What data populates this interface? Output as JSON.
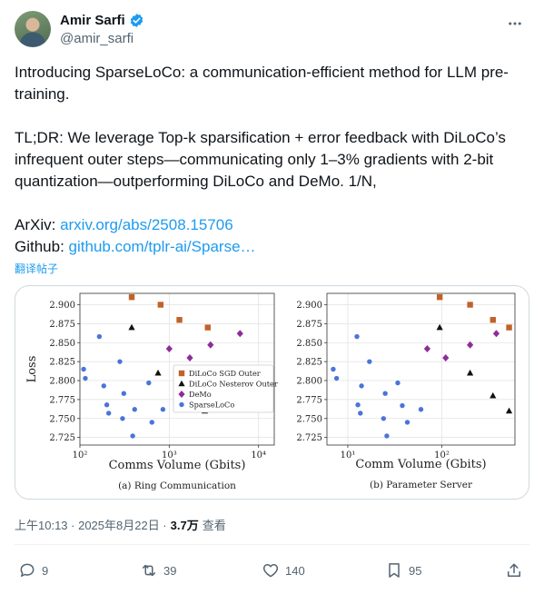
{
  "author": {
    "name": "Amir Sarfi",
    "handle": "@amir_sarfi"
  },
  "tweet": {
    "line1": "Introducing SparseLoCo: a communication-efficient method for LLM pre-training.",
    "line2": "TL;DR: We leverage Top-k sparsification + error feedback with DiLoCo’s infrequent outer steps—communicating only 1–3% gradients with 2-bit quantization—outperforming DiLoCo and DeMo. 1/N,",
    "arxiv_label": "ArXiv: ",
    "arxiv_link": "arxiv.org/abs/2508.15706",
    "github_label": "Github: ",
    "github_link": "github.com/tplr-ai/Sparse…"
  },
  "translate_label": "翻译帖子",
  "meta": {
    "time": "上午10:13 · 2025年8月22日 · ",
    "views": "3.7万",
    "views_label": " 查看"
  },
  "actions": {
    "replies": "9",
    "retweets": "39",
    "likes": "140",
    "bookmarks": "95"
  },
  "colors": {
    "link": "#1d9bf0",
    "sgd": "#c0622a",
    "nesterov": "#111111",
    "demo": "#8e2c9a",
    "sparse": "#4a74d8"
  },
  "chart_data": [
    {
      "type": "scatter",
      "title": "(a) Ring Communication",
      "xlabel": "Comms Volume (Gbits)",
      "ylabel": "Loss",
      "xscale": "log",
      "xlim": [
        100,
        15000
      ],
      "ylim": [
        2.715,
        2.915
      ],
      "yticks": [
        2.725,
        2.75,
        2.775,
        2.8,
        2.825,
        2.85,
        2.875,
        2.9
      ],
      "ytick_labels": [
        "2.725",
        "2.750",
        "2.775",
        "2.800",
        "2.825",
        "2.850",
        "2.875",
        "2.900"
      ],
      "xticks": [
        100,
        1000,
        10000
      ],
      "xtick_labels": [
        "10²",
        "10³",
        "10⁴"
      ],
      "grid": true,
      "legend_position": "center-right",
      "series": [
        {
          "name": "DiLoCo SGD Outer",
          "marker": "square",
          "x": [
            380,
            800,
            1300,
            2700
          ],
          "y": [
            2.91,
            2.9,
            2.88,
            2.87
          ]
        },
        {
          "name": "DiLoCo Nesterov Outer",
          "marker": "triangle",
          "x": [
            380,
            750,
            1350,
            2500
          ],
          "y": [
            2.87,
            2.81,
            2.78,
            2.76
          ]
        },
        {
          "name": "DeMo",
          "marker": "diamond",
          "x": [
            1000,
            1700,
            2900,
            6200
          ],
          "y": [
            2.842,
            2.83,
            2.847,
            2.862
          ]
        },
        {
          "name": "SparseLoCo",
          "marker": "circle",
          "x": [
            110,
            115,
            165,
            185,
            200,
            210,
            280,
            300,
            310,
            390,
            410,
            590,
            640,
            850
          ],
          "y": [
            2.815,
            2.803,
            2.858,
            2.793,
            2.768,
            2.757,
            2.825,
            2.75,
            2.783,
            2.727,
            2.762,
            2.797,
            2.745,
            2.762
          ]
        }
      ]
    },
    {
      "type": "scatter",
      "title": "(b) Parameter Server",
      "xlabel": "Comm Volume (Gbits)",
      "ylabel": "",
      "xscale": "log",
      "xlim": [
        6,
        600
      ],
      "ylim": [
        2.715,
        2.915
      ],
      "yticks": [
        2.725,
        2.75,
        2.775,
        2.8,
        2.825,
        2.85,
        2.875,
        2.9
      ],
      "ytick_labels": [
        "2.725",
        "2.750",
        "2.775",
        "2.800",
        "2.825",
        "2.850",
        "2.875",
        "2.900"
      ],
      "xticks": [
        10,
        100
      ],
      "xtick_labels": [
        "10¹",
        "10²"
      ],
      "grid": true,
      "legend_position": "none",
      "series": [
        {
          "name": "DiLoCo SGD Outer",
          "marker": "square",
          "x": [
            95,
            200,
            350,
            520
          ],
          "y": [
            2.91,
            2.9,
            2.88,
            2.87
          ]
        },
        {
          "name": "DiLoCo Nesterov Outer",
          "marker": "triangle",
          "x": [
            95,
            200,
            350,
            520
          ],
          "y": [
            2.87,
            2.81,
            2.78,
            2.76
          ]
        },
        {
          "name": "DeMo",
          "marker": "diamond",
          "x": [
            70,
            110,
            200,
            380
          ],
          "y": [
            2.842,
            2.83,
            2.847,
            2.862
          ]
        },
        {
          "name": "SparseLoCo",
          "marker": "circle",
          "x": [
            7,
            7.6,
            12.5,
            12.8,
            13.6,
            14,
            17,
            24,
            25,
            26,
            34,
            38,
            43,
            60
          ],
          "y": [
            2.815,
            2.803,
            2.858,
            2.768,
            2.757,
            2.793,
            2.825,
            2.75,
            2.783,
            2.727,
            2.797,
            2.767,
            2.745,
            2.762
          ]
        }
      ]
    }
  ]
}
